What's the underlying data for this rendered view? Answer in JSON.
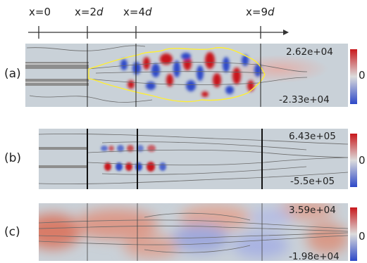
{
  "axis": {
    "ticks": [
      {
        "prefix": "x=",
        "value": "0",
        "suffix": ""
      },
      {
        "prefix": "x=",
        "value": "2",
        "suffix": "d"
      },
      {
        "prefix": "x=",
        "value": "4",
        "suffix": "d"
      },
      {
        "prefix": "x=",
        "value": "9",
        "suffix": "d"
      }
    ]
  },
  "panels": [
    {
      "label": "(a)",
      "max": "2.62e+04",
      "min": "-2.33e+04",
      "zero": "0"
    },
    {
      "label": "(b)",
      "max": "6.43e+05",
      "min": "-5.5e+05",
      "zero": "0"
    },
    {
      "label": "(c)",
      "max": "3.59e+04",
      "min": "-1.98e+04",
      "zero": "0"
    }
  ],
  "colors": {
    "background": "#c9d1d8",
    "positive": "#c8181c",
    "negative": "#2d48c8",
    "contour": "#6a6a6a",
    "flame_front": "#ffee33"
  }
}
